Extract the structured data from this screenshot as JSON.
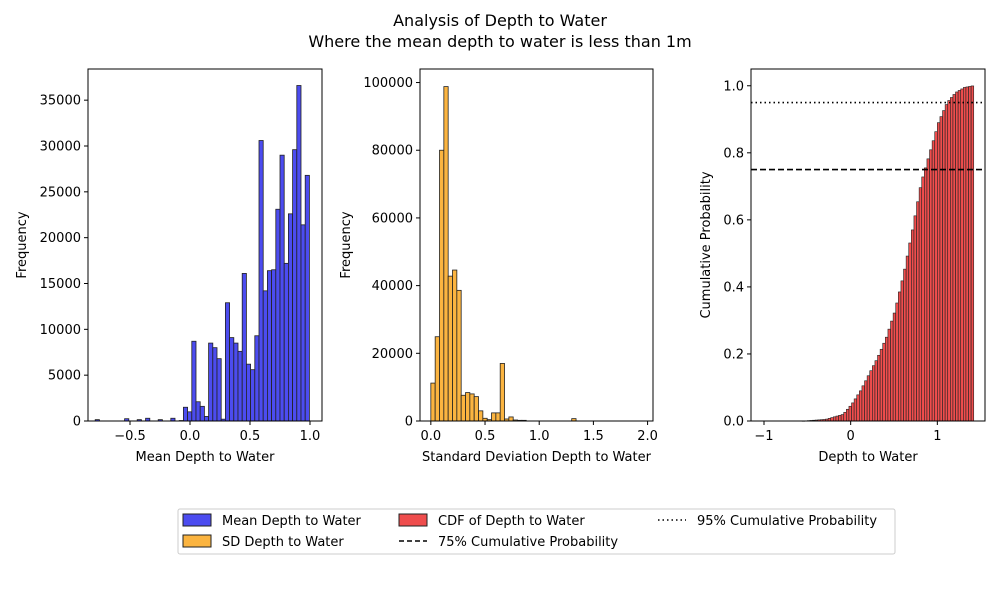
{
  "figure": {
    "title": "Analysis of Depth to Water",
    "subtitle": "Where the mean depth to water is less than 1m"
  },
  "colors": {
    "blue": "#4c4cf0",
    "orange": "#fbb440",
    "red": "#ef4d4d",
    "edge": "#222222",
    "axis": "#000000"
  },
  "chart_data": [
    {
      "type": "bar",
      "title": "",
      "xlabel": "Mean Depth to Water",
      "ylabel": "Frequency",
      "xlim": [
        -0.85,
        1.1
      ],
      "ylim": [
        0,
        38400
      ],
      "xticks": [
        -0.5,
        0.0,
        0.5,
        1.0
      ],
      "xtick_labels": [
        "−0.5",
        "0.0",
        "0.5",
        "1.0"
      ],
      "yticks": [
        0,
        5000,
        10000,
        15000,
        20000,
        25000,
        30000,
        35000
      ],
      "yticklabels": [
        "0",
        "5000",
        "10000",
        "15000",
        "20000",
        "25000",
        "30000",
        "35000"
      ],
      "bin_width": 0.035,
      "series": [
        {
          "name": "Mean Depth to Water",
          "color": "blue",
          "bin_starts": [
            -0.79,
            -0.545,
            -0.44,
            -0.37,
            -0.265,
            -0.16,
            -0.09,
            -0.055,
            -0.02,
            0.015,
            0.05,
            0.085,
            0.12,
            0.155,
            0.19,
            0.225,
            0.26,
            0.295,
            0.33,
            0.365,
            0.4,
            0.435,
            0.47,
            0.505,
            0.54,
            0.575,
            0.61,
            0.645,
            0.68,
            0.715,
            0.75,
            0.785,
            0.82,
            0.855,
            0.89,
            0.925,
            0.96
          ],
          "values": [
            150,
            250,
            150,
            300,
            150,
            300,
            50,
            1500,
            1000,
            8700,
            2100,
            1600,
            500,
            8500,
            8000,
            6800,
            200,
            12900,
            9100,
            8500,
            7600,
            16100,
            6200,
            5600,
            9300,
            30600,
            14200,
            16400,
            16500,
            23100,
            29000,
            17200,
            22600,
            29600,
            36600,
            21400,
            26800
          ]
        }
      ]
    },
    {
      "type": "bar",
      "title": "",
      "xlabel": "Standard Deviation Depth to Water",
      "ylabel": "Frequency",
      "xlim": [
        -0.1,
        2.05
      ],
      "ylim": [
        0,
        104000
      ],
      "xticks": [
        0.0,
        0.5,
        1.0,
        1.5,
        2.0
      ],
      "xtick_labels": [
        "0.0",
        "0.5",
        "1.0",
        "1.5",
        "2.0"
      ],
      "yticks": [
        0,
        20000,
        40000,
        60000,
        80000,
        100000
      ],
      "yticklabels": [
        "0",
        "20000",
        "40000",
        "60000",
        "80000",
        "100000"
      ],
      "bin_width": 0.04,
      "series": [
        {
          "name": "SD Depth to Water",
          "color": "orange",
          "bin_starts": [
            0.0,
            0.04,
            0.08,
            0.12,
            0.16,
            0.2,
            0.24,
            0.28,
            0.32,
            0.36,
            0.4,
            0.44,
            0.48,
            0.52,
            0.56,
            0.6,
            0.64,
            0.68,
            0.72,
            0.76,
            0.8,
            0.84,
            1.3
          ],
          "values": [
            11200,
            24900,
            80000,
            98800,
            42800,
            44600,
            38600,
            7600,
            8400,
            8000,
            7200,
            3000,
            800,
            400,
            2400,
            2400,
            17000,
            600,
            1200,
            300,
            200,
            200,
            700
          ]
        }
      ]
    },
    {
      "type": "bar",
      "title": "",
      "xlabel": "Depth to Water",
      "ylabel": "Cumulative Probability",
      "xlim": [
        -1.15,
        1.55
      ],
      "ylim": [
        0,
        1.05
      ],
      "xticks": [
        -1,
        0,
        1
      ],
      "xtick_labels": [
        "−1",
        "0",
        "1"
      ],
      "yticks": [
        0.0,
        0.2,
        0.4,
        0.6,
        0.8,
        1.0
      ],
      "yticklabels": [
        "0.0",
        "0.2",
        "0.4",
        "0.6",
        "0.8",
        "1.0"
      ],
      "cdf": {
        "x_start": -0.56,
        "x_end": 1.4,
        "step": 0.03,
        "points": [
          [
            -0.56,
            0.0
          ],
          [
            -0.3,
            0.005
          ],
          [
            -0.1,
            0.02
          ],
          [
            0.0,
            0.05
          ],
          [
            0.1,
            0.09
          ],
          [
            0.2,
            0.14
          ],
          [
            0.3,
            0.19
          ],
          [
            0.4,
            0.25
          ],
          [
            0.5,
            0.33
          ],
          [
            0.6,
            0.44
          ],
          [
            0.7,
            0.57
          ],
          [
            0.8,
            0.71
          ],
          [
            0.9,
            0.8
          ],
          [
            1.0,
            0.89
          ],
          [
            1.1,
            0.95
          ],
          [
            1.2,
            0.98
          ],
          [
            1.3,
            0.995
          ],
          [
            1.4,
            1.0
          ]
        ]
      },
      "reference_lines": [
        {
          "name": "75% Cumulative Probability",
          "y": 0.75,
          "style": "dashed"
        },
        {
          "name": "95% Cumulative Probability",
          "y": 0.95,
          "style": "dotted"
        }
      ],
      "series": [
        {
          "name": "CDF of Depth to Water",
          "color": "red"
        }
      ]
    }
  ],
  "legend": {
    "placement": "bottom-center",
    "items": [
      {
        "label": "Mean Depth to Water",
        "kind": "patch",
        "color": "blue"
      },
      {
        "label": "SD Depth to Water",
        "kind": "patch",
        "color": "orange"
      },
      {
        "label": "CDF of Depth to Water",
        "kind": "patch",
        "color": "red"
      },
      {
        "label": "75% Cumulative Probability",
        "kind": "line",
        "style": "dashed"
      },
      {
        "label": "95% Cumulative Probability",
        "kind": "line",
        "style": "dotted"
      }
    ]
  }
}
